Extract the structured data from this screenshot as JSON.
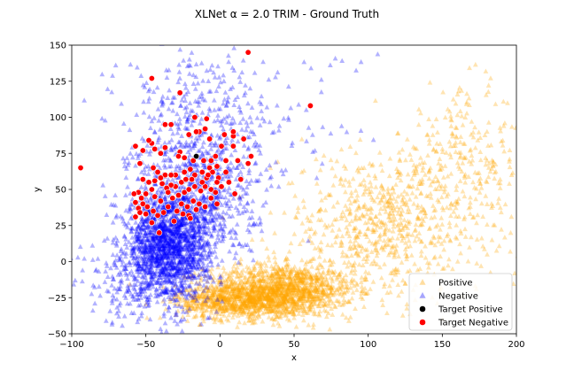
{
  "chart_data": {
    "type": "scatter",
    "title": "XLNet α = 2.0 TRIM - Ground Truth",
    "xlabel": "x",
    "ylabel": "y",
    "xlim": [
      -100,
      200
    ],
    "ylim": [
      -50,
      150
    ],
    "xticks": [
      "−100",
      "−50",
      "0",
      "50",
      "100",
      "150",
      "200"
    ],
    "yticks": [
      "−50",
      "−25",
      "0",
      "25",
      "50",
      "75",
      "100",
      "125",
      "150"
    ],
    "grid": false,
    "legend_position": "lower-right",
    "series": [
      {
        "name": "Positive",
        "marker": "triangle",
        "color": "#ffa500",
        "opacity": 0.3,
        "clusters": [
          {
            "center": [
              40,
              -20
            ],
            "spread": [
              25,
              9
            ],
            "count": 1400
          },
          {
            "center": [
              10,
              -28
            ],
            "spread": [
              20,
              6
            ],
            "count": 600
          },
          {
            "center": [
              110,
              25
            ],
            "spread": [
              35,
              25
            ],
            "count": 700
          },
          {
            "center": [
              165,
              70
            ],
            "spread": [
              20,
              25
            ],
            "count": 250
          }
        ]
      },
      {
        "name": "Negative",
        "marker": "triangle",
        "color": "#0000ff",
        "opacity": 0.3,
        "clusters": [
          {
            "center": [
              -35,
              10
            ],
            "spread": [
              14,
              18
            ],
            "count": 1600
          },
          {
            "center": [
              -15,
              45
            ],
            "spread": [
              20,
              25
            ],
            "count": 700
          },
          {
            "center": [
              -20,
              100
            ],
            "spread": [
              25,
              25
            ],
            "count": 250
          },
          {
            "center": [
              20,
              100
            ],
            "spread": [
              40,
              25
            ],
            "count": 120
          },
          {
            "center": [
              -60,
              -15
            ],
            "spread": [
              20,
              15
            ],
            "count": 150
          }
        ]
      },
      {
        "name": "Target Positive",
        "marker": "circle",
        "color": "#000000",
        "points": [
          [
            -16,
            73
          ]
        ]
      },
      {
        "name": "Target Negative",
        "marker": "circle",
        "color": "#ff0000",
        "points": [
          [
            -94,
            65
          ],
          [
            19,
            145
          ],
          [
            -46,
            127
          ],
          [
            -27,
            117
          ],
          [
            61,
            108
          ],
          [
            -17,
            100
          ],
          [
            -37,
            95
          ],
          [
            -33,
            95
          ],
          [
            -9,
            99
          ],
          [
            -10,
            92
          ],
          [
            -14,
            90
          ],
          [
            -16,
            90
          ],
          [
            -21,
            88
          ],
          [
            -7,
            85
          ],
          [
            3,
            88
          ],
          [
            9,
            87
          ],
          [
            9,
            90
          ],
          [
            16,
            85
          ],
          [
            1,
            80
          ],
          [
            -57,
            80
          ],
          [
            -46,
            82
          ],
          [
            -44,
            78
          ],
          [
            -48,
            84
          ],
          [
            -52,
            77
          ],
          [
            -40,
            75
          ],
          [
            -37,
            79
          ],
          [
            -27,
            76
          ],
          [
            -28,
            73
          ],
          [
            -24,
            72
          ],
          [
            -18,
            70
          ],
          [
            -11,
            70
          ],
          [
            -6,
            70
          ],
          [
            -3,
            73
          ],
          [
            -2,
            66
          ],
          [
            4,
            70
          ],
          [
            -7,
            65
          ],
          [
            9,
            80
          ],
          [
            12,
            70
          ],
          [
            21,
            73
          ],
          [
            19,
            68
          ],
          [
            -54,
            68
          ],
          [
            -45,
            65
          ],
          [
            -42,
            62
          ],
          [
            -37,
            60
          ],
          [
            -30,
            60
          ],
          [
            -24,
            62
          ],
          [
            -20,
            64
          ],
          [
            -17,
            60
          ],
          [
            -12,
            62
          ],
          [
            -9,
            58
          ],
          [
            -5,
            62
          ],
          [
            -1,
            58
          ],
          [
            -26,
            55
          ],
          [
            -30,
            52
          ],
          [
            -33,
            53
          ],
          [
            -36,
            51
          ],
          [
            -39,
            54
          ],
          [
            -44,
            56
          ],
          [
            -48,
            55
          ],
          [
            -52,
            57
          ],
          [
            -46,
            50
          ],
          [
            -50,
            47
          ],
          [
            -55,
            48
          ],
          [
            -58,
            47
          ],
          [
            -53,
            44
          ],
          [
            -57,
            41
          ],
          [
            -55,
            37
          ],
          [
            -52,
            40
          ],
          [
            -49,
            38
          ],
          [
            -44,
            45
          ],
          [
            -40,
            42
          ],
          [
            -35,
            48
          ],
          [
            -32,
            44
          ],
          [
            -28,
            46
          ],
          [
            -24,
            48
          ],
          [
            -21,
            50
          ],
          [
            -17,
            52
          ],
          [
            -13,
            49
          ],
          [
            -10,
            52
          ],
          [
            -6,
            50
          ],
          [
            -3,
            48
          ],
          [
            1,
            52
          ],
          [
            6,
            55
          ],
          [
            10,
            47
          ],
          [
            14,
            57
          ],
          [
            -26,
            40
          ],
          [
            -22,
            38
          ],
          [
            -18,
            42
          ],
          [
            -14,
            40
          ],
          [
            -10,
            38
          ],
          [
            -6,
            44
          ],
          [
            -2,
            40
          ],
          [
            -29,
            35
          ],
          [
            -25,
            33
          ],
          [
            -21,
            32
          ],
          [
            -31,
            28
          ],
          [
            -38,
            34
          ],
          [
            -42,
            32
          ],
          [
            -45,
            35
          ],
          [
            -50,
            33
          ],
          [
            -54,
            34
          ],
          [
            -57,
            31
          ],
          [
            -46,
            27
          ],
          [
            -41,
            20
          ],
          [
            -20,
            30
          ],
          [
            -16,
            36
          ],
          [
            -35,
            38
          ],
          [
            -12,
            55
          ],
          [
            -8,
            60
          ],
          [
            -19,
            57
          ],
          [
            -23,
            57
          ],
          [
            -33,
            60
          ],
          [
            -40,
            58
          ],
          [
            -2,
            55
          ],
          [
            4,
            62
          ]
        ]
      }
    ]
  },
  "legend": {
    "items": [
      {
        "label": "Positive",
        "color": "#ffa500"
      },
      {
        "label": "Negative",
        "color": "#0000ff"
      },
      {
        "label": "Target Positive",
        "color": "#000000"
      },
      {
        "label": "Target Negative",
        "color": "#ff0000"
      }
    ]
  }
}
